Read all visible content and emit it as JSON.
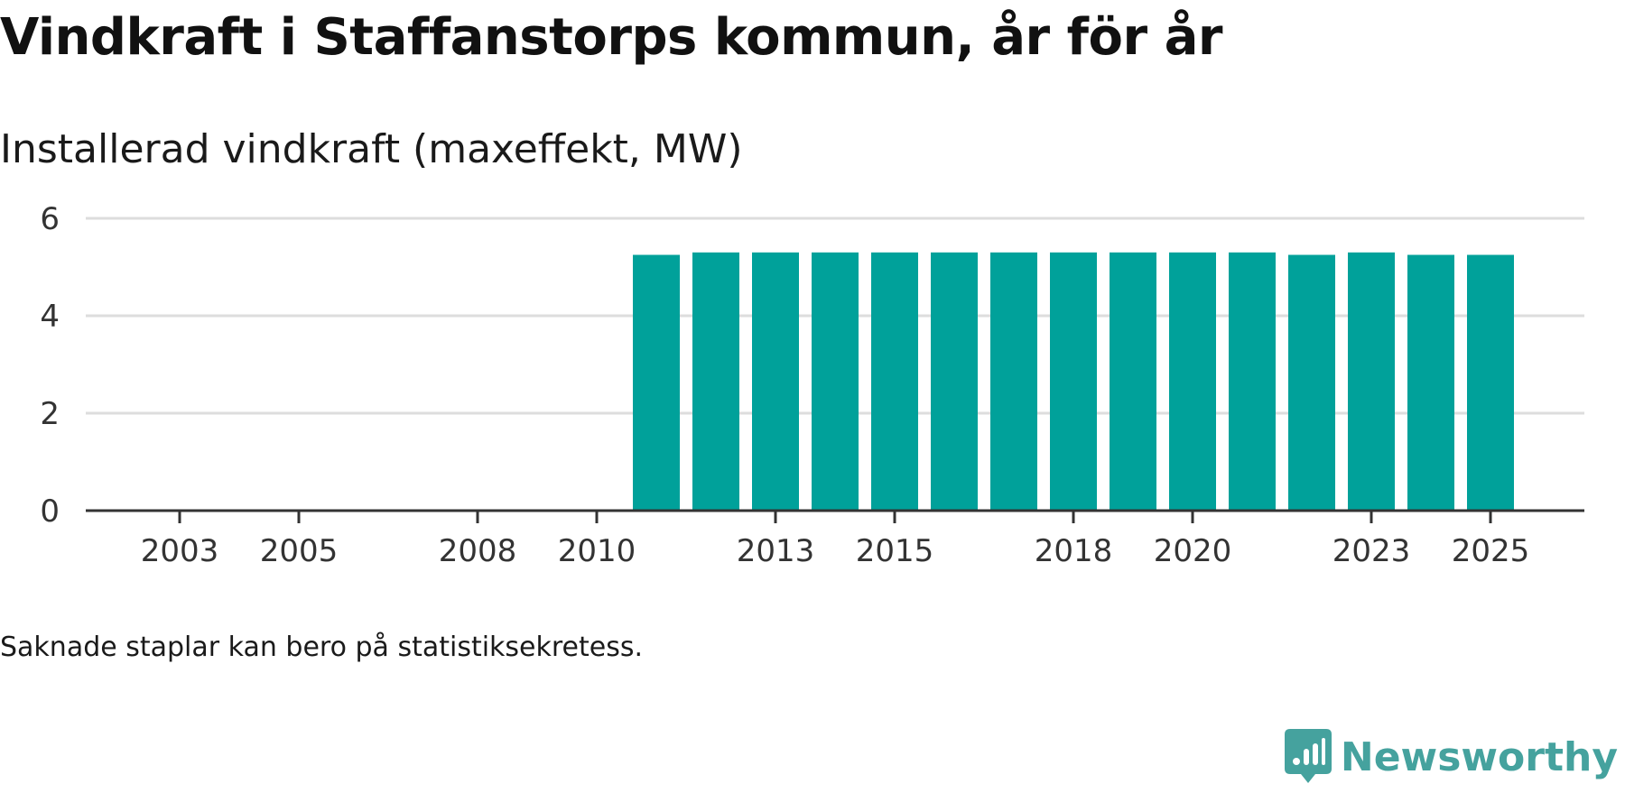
{
  "title": "Vindkraft i Staffanstorps kommun, år för år",
  "subtitle": "Installerad vindkraft (maxeffekt, MW)",
  "note": "Saknade staplar kan bero på statistiksekretess.",
  "brand": {
    "name": "Newsworthy",
    "color": "#45a29e"
  },
  "chart_data": {
    "type": "bar",
    "title": "Vindkraft i Staffanstorps kommun, år för år",
    "ylabel": "Installerad vindkraft (maxeffekt, MW)",
    "xlabel": "",
    "categories": [
      "2003",
      "2004",
      "2005",
      "2006",
      "2007",
      "2008",
      "2009",
      "2010",
      "2011",
      "2012",
      "2013",
      "2014",
      "2015",
      "2016",
      "2017",
      "2018",
      "2019",
      "2020",
      "2021",
      "2022",
      "2023",
      "2024",
      "2025"
    ],
    "values": [
      0,
      0,
      0,
      0,
      0,
      0,
      0,
      0,
      5.25,
      5.3,
      5.3,
      5.3,
      5.3,
      5.3,
      5.3,
      5.3,
      5.3,
      5.3,
      5.3,
      5.25,
      5.3,
      5.25,
      5.25
    ],
    "ylim": [
      0,
      6
    ],
    "yticks": [
      0,
      2,
      4,
      6
    ],
    "xtick_labels": [
      "2003",
      "2005",
      "2008",
      "2010",
      "2013",
      "2015",
      "2018",
      "2020",
      "2023",
      "2025"
    ],
    "bar_color": "#00a19a",
    "grid": true
  }
}
